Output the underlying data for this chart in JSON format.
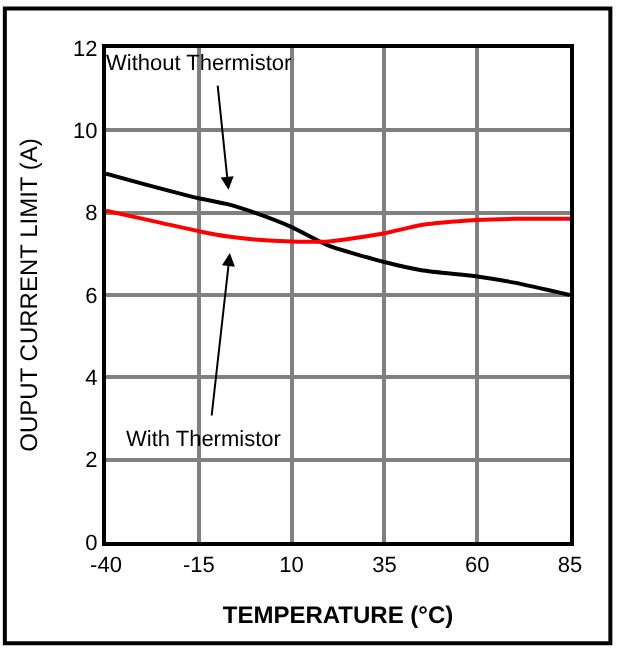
{
  "chart_data": {
    "type": "line",
    "xlabel": "TEMPERATURE (°C)",
    "ylabel": "OUPUT CURRENT LIMIT (A)",
    "x": [
      -40,
      -30,
      -15,
      -7,
      0,
      10,
      20,
      35,
      45,
      60,
      70,
      85
    ],
    "series": [
      {
        "color": "#000000",
        "values": [
          8.95,
          8.7,
          8.35,
          8.2,
          8.0,
          7.65,
          7.2,
          6.8,
          6.6,
          6.45,
          6.3,
          6.0
        ]
      },
      {
        "color": "#ff0000",
        "values": [
          8.05,
          7.85,
          7.55,
          7.42,
          7.35,
          7.3,
          7.3,
          7.5,
          7.7,
          7.82,
          7.85,
          7.85
        ]
      }
    ],
    "xlim": [
      -40,
      85
    ],
    "xticks": [
      -40,
      -15,
      10,
      35,
      60,
      85
    ],
    "ylim": [
      0,
      12
    ],
    "yticks": [
      0,
      2,
      4,
      6,
      8,
      10,
      12
    ],
    "grid": true,
    "marker": "none",
    "line_style": "solid",
    "annotations": [
      "Without Thermistor",
      "With Thermistor"
    ]
  }
}
